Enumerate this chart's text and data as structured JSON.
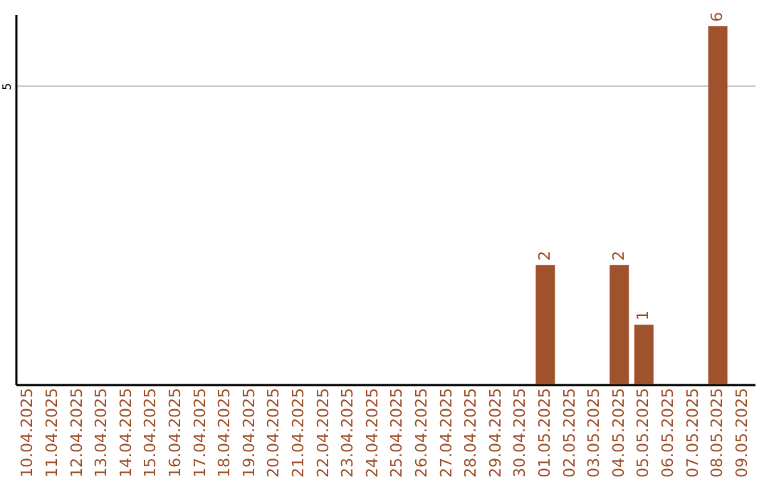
{
  "chart_data": {
    "type": "bar",
    "categories": [
      "10.04.2025",
      "11.04.2025",
      "12.04.2025",
      "13.04.2025",
      "14.04.2025",
      "15.04.2025",
      "16.04.2025",
      "17.04.2025",
      "18.04.2025",
      "19.04.2025",
      "20.04.2025",
      "21.04.2025",
      "22.04.2025",
      "23.04.2025",
      "24.04.2025",
      "25.04.2025",
      "26.04.2025",
      "27.04.2025",
      "28.04.2025",
      "29.04.2025",
      "30.04.2025",
      "01.05.2025",
      "02.05.2025",
      "03.05.2025",
      "04.05.2025",
      "05.05.2025",
      "06.05.2025",
      "07.05.2025",
      "08.05.2025",
      "09.05.2025"
    ],
    "values": [
      null,
      null,
      null,
      null,
      null,
      null,
      null,
      null,
      null,
      null,
      null,
      null,
      null,
      null,
      null,
      null,
      null,
      null,
      null,
      null,
      null,
      2,
      null,
      null,
      2,
      1,
      null,
      null,
      6,
      null
    ],
    "color": "#a0522d",
    "ylim": [
      0,
      6.2
    ],
    "yticks": [
      5
    ],
    "grid": "y",
    "data_labels": true
  }
}
